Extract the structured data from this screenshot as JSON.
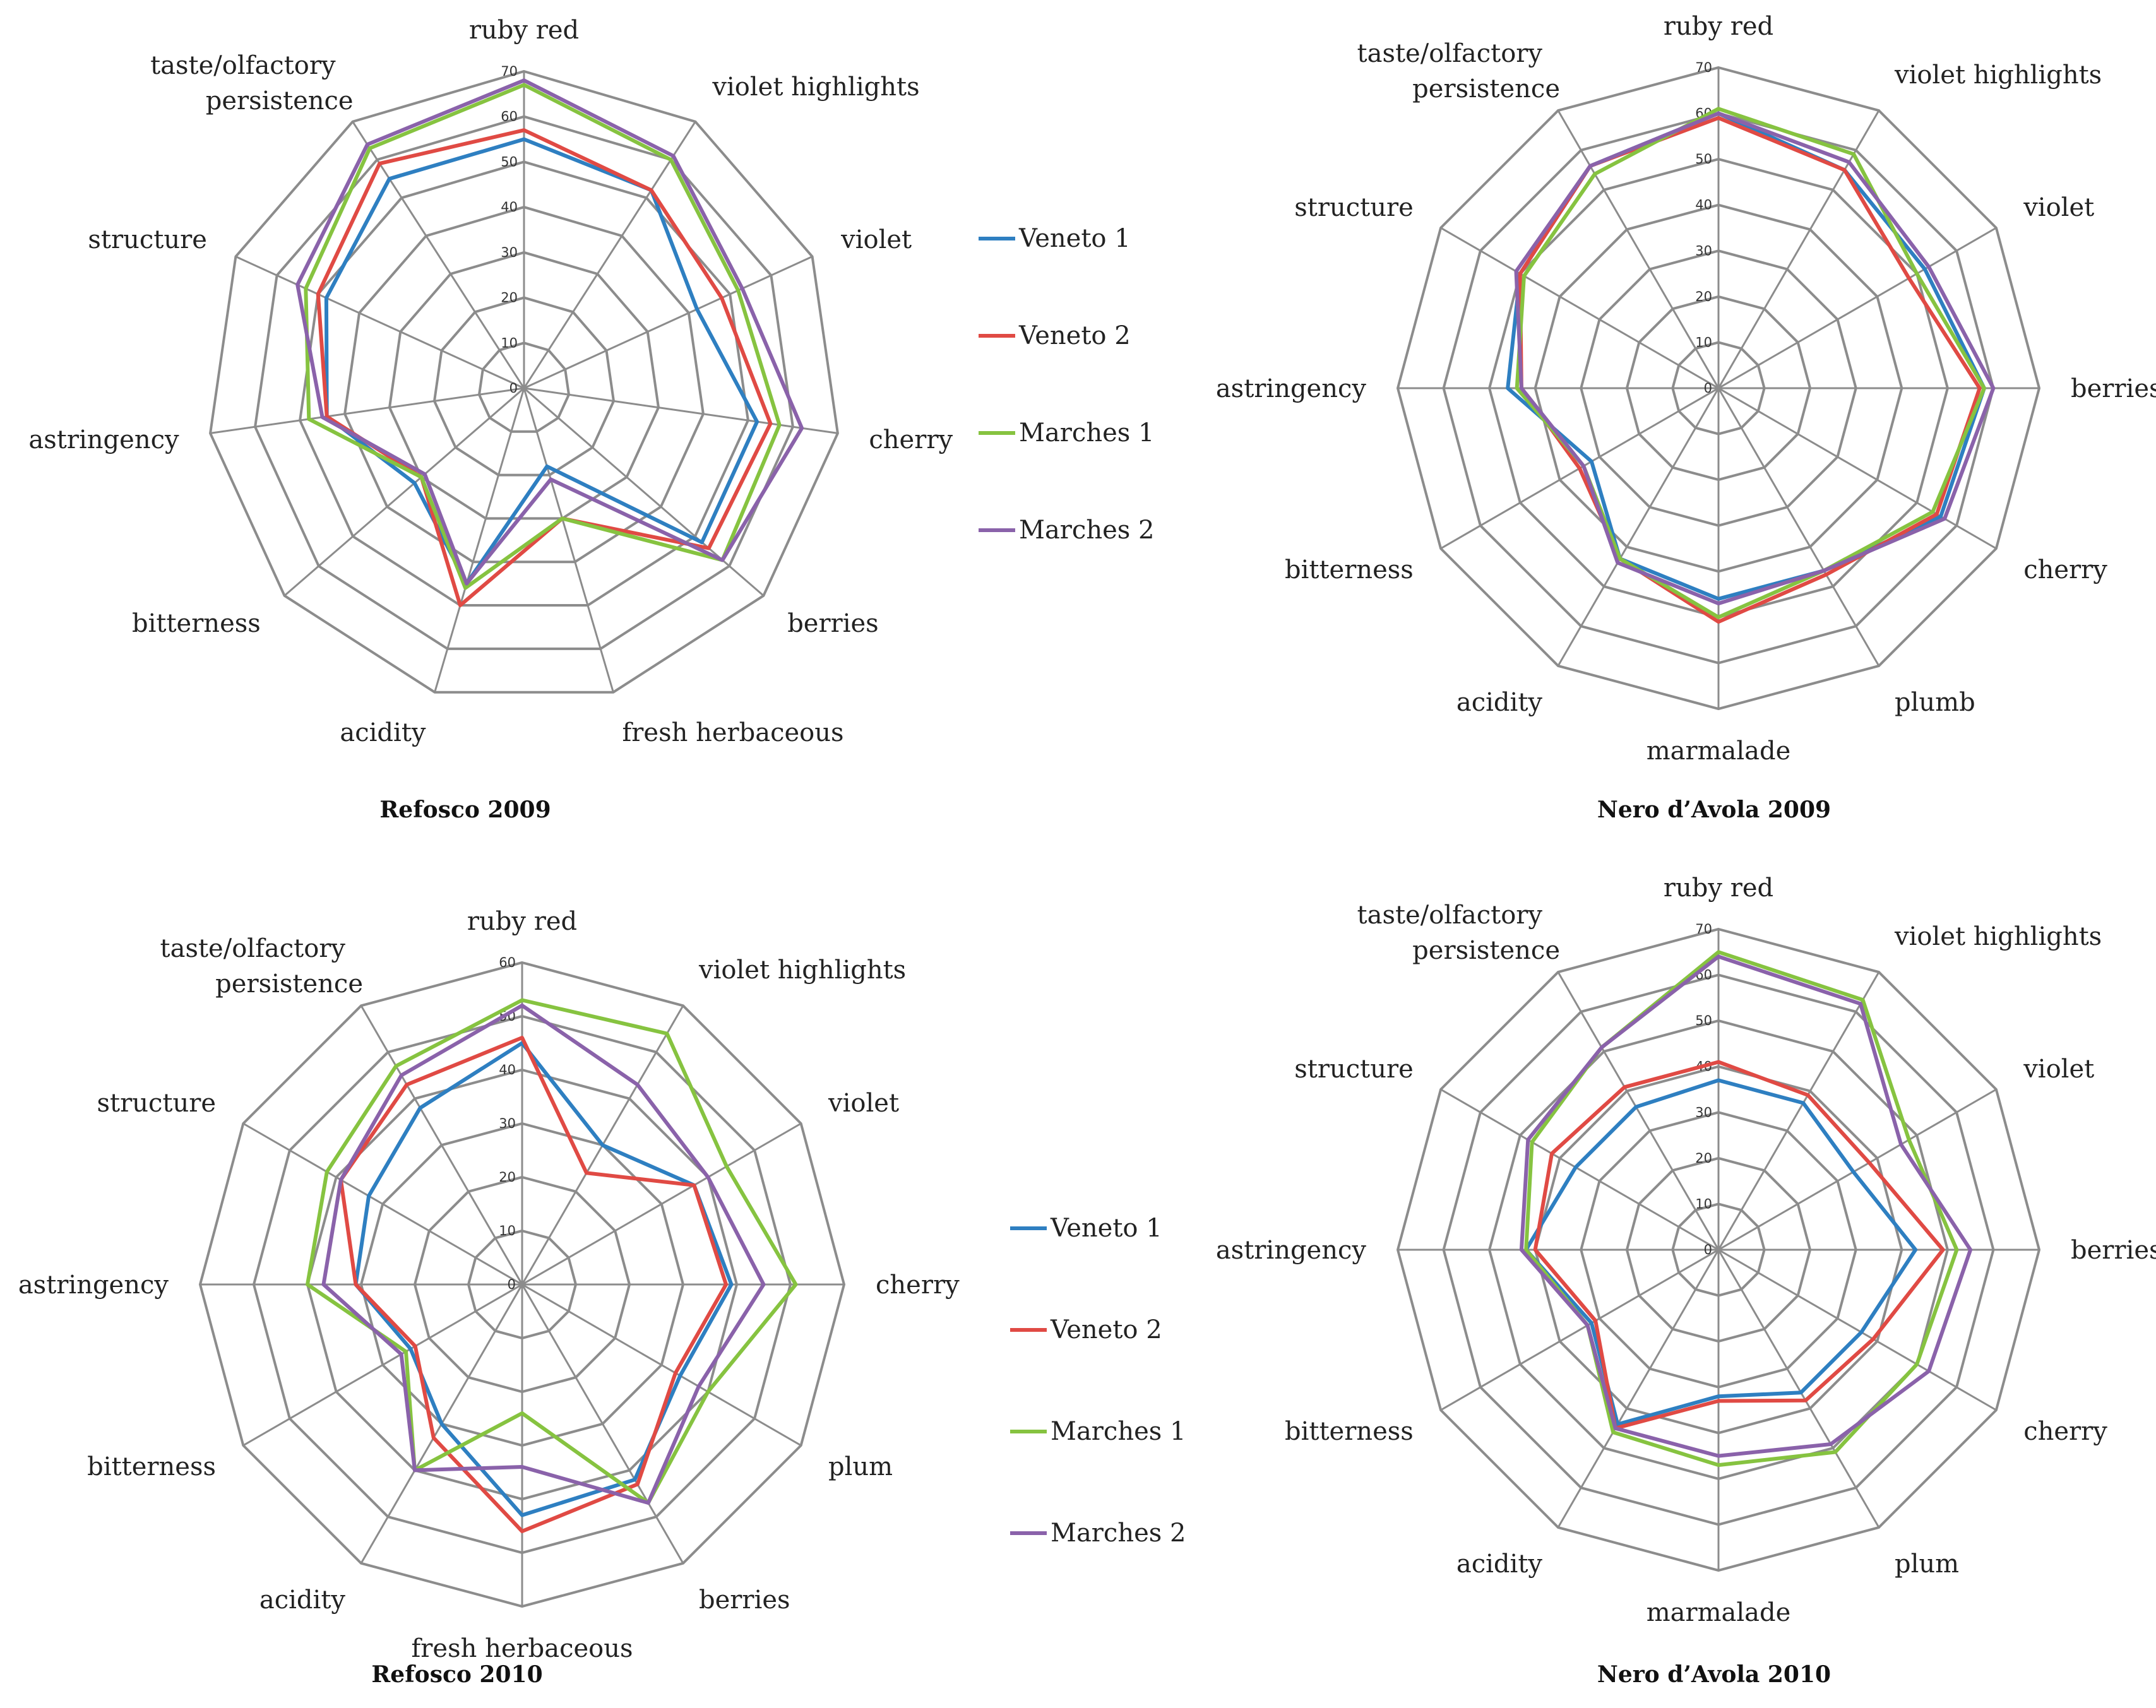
{
  "colors": {
    "Veneto 1": "#2e7fc1",
    "Veneto 2": "#e04a44",
    "Marches 1": "#86c340",
    "Marches 2": "#8a62aa"
  },
  "chart_data": [
    {
      "type": "radar",
      "title": "Refosco 2009",
      "axes": [
        "ruby red",
        "violet highlights",
        "violet",
        "cherry",
        "berries",
        "fresh herbaceous",
        "acidity",
        "bitterness",
        "astringency",
        "structure",
        "taste/olfactory persistence"
      ],
      "rmax": 70,
      "ticks": [
        "0",
        "10",
        "20",
        "30",
        "40",
        "50",
        "60",
        "70"
      ],
      "legend": [
        "Veneto 1",
        "Veneto 2",
        "Marches 1",
        "Marches 2"
      ],
      "series": [
        {
          "name": "Veneto 1",
          "values": [
            55,
            52,
            42,
            52,
            52,
            18,
            45,
            32,
            44,
            48,
            55
          ]
        },
        {
          "name": "Veneto 2",
          "values": [
            57,
            52,
            48,
            55,
            54,
            30,
            50,
            30,
            44,
            50,
            59
          ]
        },
        {
          "name": "Marches 1",
          "values": [
            67,
            60,
            52,
            57,
            58,
            30,
            46,
            30,
            48,
            53,
            63
          ]
        },
        {
          "name": "Marches 2",
          "values": [
            68,
            61,
            53,
            62,
            58,
            21,
            45,
            29,
            45,
            55,
            64
          ]
        }
      ]
    },
    {
      "type": "radar",
      "title": "Nero d’Avola 2009",
      "axes": [
        "ruby red",
        "violet highlights",
        "violet",
        "berries",
        "cherry",
        "plumb",
        "marmalade",
        "acidity",
        "bitterness",
        "astringency",
        "structure",
        "taste/olfactory persistence"
      ],
      "rmax": 70,
      "ticks": [
        "0",
        "10",
        "20",
        "30",
        "40",
        "50",
        "60",
        "70"
      ],
      "legend": [],
      "series": [
        {
          "name": "Veneto 1",
          "values": [
            60,
            55,
            52,
            58,
            56,
            46,
            46,
            43,
            32,
            46,
            50,
            56
          ]
        },
        {
          "name": "Veneto 2",
          "values": [
            59,
            55,
            48,
            57,
            55,
            47,
            51,
            43,
            35,
            43,
            50,
            56
          ]
        },
        {
          "name": "Marches 1",
          "values": [
            61,
            59,
            50,
            58,
            54,
            46,
            50,
            43,
            34,
            44,
            49,
            54
          ]
        },
        {
          "name": "Marches 2",
          "values": [
            60,
            57,
            53,
            60,
            57,
            46,
            47,
            44,
            34,
            43,
            51,
            56
          ]
        }
      ]
    },
    {
      "type": "radar",
      "title": "Refosco 2010",
      "axes": [
        "ruby red",
        "violet highlights",
        "violet",
        "cherry",
        "plum",
        "berries",
        "fresh herbaceous",
        "acidity",
        "bitterness",
        "astringency",
        "structure",
        "taste/olfactory persistence"
      ],
      "rmax": 60,
      "ticks": [
        "0",
        "10",
        "20",
        "30",
        "40",
        "50",
        "60"
      ],
      "legend": [
        "Veneto 1",
        "Veneto 2",
        "Marches 1",
        "Marches 2"
      ],
      "series": [
        {
          "name": "Veneto 1",
          "values": [
            45,
            30,
            37,
            39,
            34,
            42,
            43,
            30,
            24,
            31,
            33,
            38
          ]
        },
        {
          "name": "Veneto 2",
          "values": [
            46,
            24,
            37,
            38,
            33,
            43,
            46,
            33,
            23,
            31,
            39,
            43
          ]
        },
        {
          "name": "Marches 1",
          "values": [
            53,
            54,
            44,
            51,
            40,
            47,
            24,
            40,
            25,
            40,
            42,
            47
          ]
        },
        {
          "name": "Marches 2",
          "values": [
            52,
            43,
            40,
            45,
            38,
            47,
            34,
            40,
            26,
            37,
            39,
            45
          ]
        }
      ]
    },
    {
      "type": "radar",
      "title": "Nero d’Avola 2010",
      "axes": [
        "ruby red",
        "violet highlights",
        "violet",
        "berries",
        "cherry",
        "plum",
        "marmalade",
        "acidity",
        "bitterness",
        "astringency",
        "structure",
        "taste/olfactory persistence"
      ],
      "rmax": 70,
      "ticks": [
        "0",
        "10",
        "20",
        "30",
        "40",
        "50",
        "60",
        "70"
      ],
      "legend": [
        "Veneto 1",
        "Veneto 2",
        "Marches 1",
        "Marches 2"
      ],
      "series": [
        {
          "name": "Veneto 1",
          "values": [
            37,
            37,
            34,
            43,
            36,
            36,
            32,
            44,
            32,
            42,
            36,
            36
          ]
        },
        {
          "name": "Veneto 2",
          "values": [
            41,
            39,
            38,
            49,
            39,
            38,
            33,
            45,
            31,
            40,
            42,
            41
          ]
        },
        {
          "name": "Marches 1",
          "values": [
            65,
            63,
            48,
            52,
            50,
            51,
            47,
            46,
            33,
            42,
            47,
            51
          ]
        },
        {
          "name": "Marches 2",
          "values": [
            64,
            62,
            46,
            55,
            53,
            49,
            45,
            45,
            33,
            43,
            48,
            51
          ]
        }
      ]
    }
  ]
}
